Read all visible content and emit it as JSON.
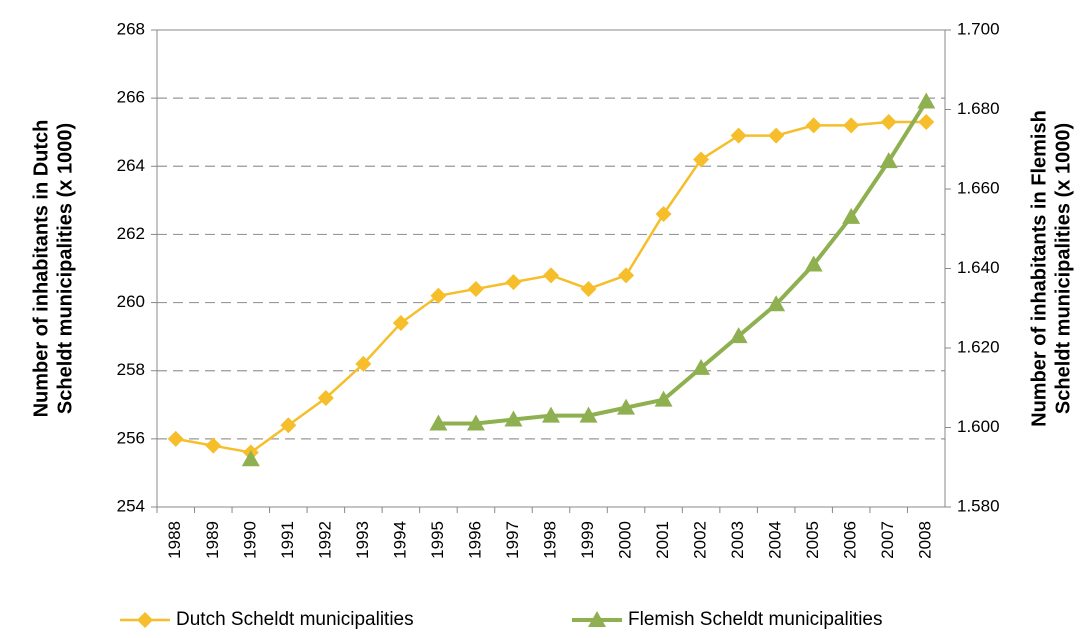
{
  "chart_data": {
    "type": "line",
    "categories": [
      "1988",
      "1989",
      "1990",
      "1991",
      "1992",
      "1993",
      "1994",
      "1995",
      "1996",
      "1997",
      "1998",
      "1999",
      "2000",
      "2001",
      "2002",
      "2003",
      "2004",
      "2005",
      "2006",
      "2007",
      "2008"
    ],
    "y_label": [
      "Number of inhabitants in Dutch",
      "Scheldt municipalities (x 1000)"
    ],
    "y2_label": [
      "Number of inhabitants in Flemish",
      "Scheldt municipalities (x 1000)"
    ],
    "ylim": [
      254,
      268
    ],
    "yticks": [
      254,
      256,
      258,
      260,
      262,
      264,
      266,
      268
    ],
    "y2lim": [
      1580,
      1700
    ],
    "y2ticks": [
      {
        "value": 1580,
        "label": "1.580"
      },
      {
        "value": 1600,
        "label": "1.600"
      },
      {
        "value": 1620,
        "label": "1.620"
      },
      {
        "value": 1640,
        "label": "1.640"
      },
      {
        "value": 1660,
        "label": "1.660"
      },
      {
        "value": 1680,
        "label": "1.680"
      },
      {
        "value": 1700,
        "label": "1.700"
      }
    ],
    "grid": true,
    "legend": "bottom",
    "series": [
      {
        "name": "Dutch Scheldt municipalities",
        "color": "#f5be2a",
        "marker": "diamond",
        "values": [
          256.0,
          255.8,
          255.6,
          256.4,
          257.2,
          258.2,
          259.4,
          260.2,
          260.4,
          260.6,
          260.8,
          260.4,
          260.8,
          262.6,
          264.2,
          264.9,
          264.9,
          265.2,
          265.2,
          265.3,
          265.3
        ]
      },
      {
        "name": "Flemish Scheldt municipalities",
        "color": "#8fb050",
        "marker": "triangle",
        "axis": "y2",
        "values": [
          null,
          null,
          1592,
          null,
          null,
          null,
          null,
          1601,
          1601,
          1602,
          1603,
          1603,
          1605,
          1607,
          1615,
          1623,
          1631,
          1641,
          1653,
          1667,
          1682
        ]
      }
    ]
  }
}
